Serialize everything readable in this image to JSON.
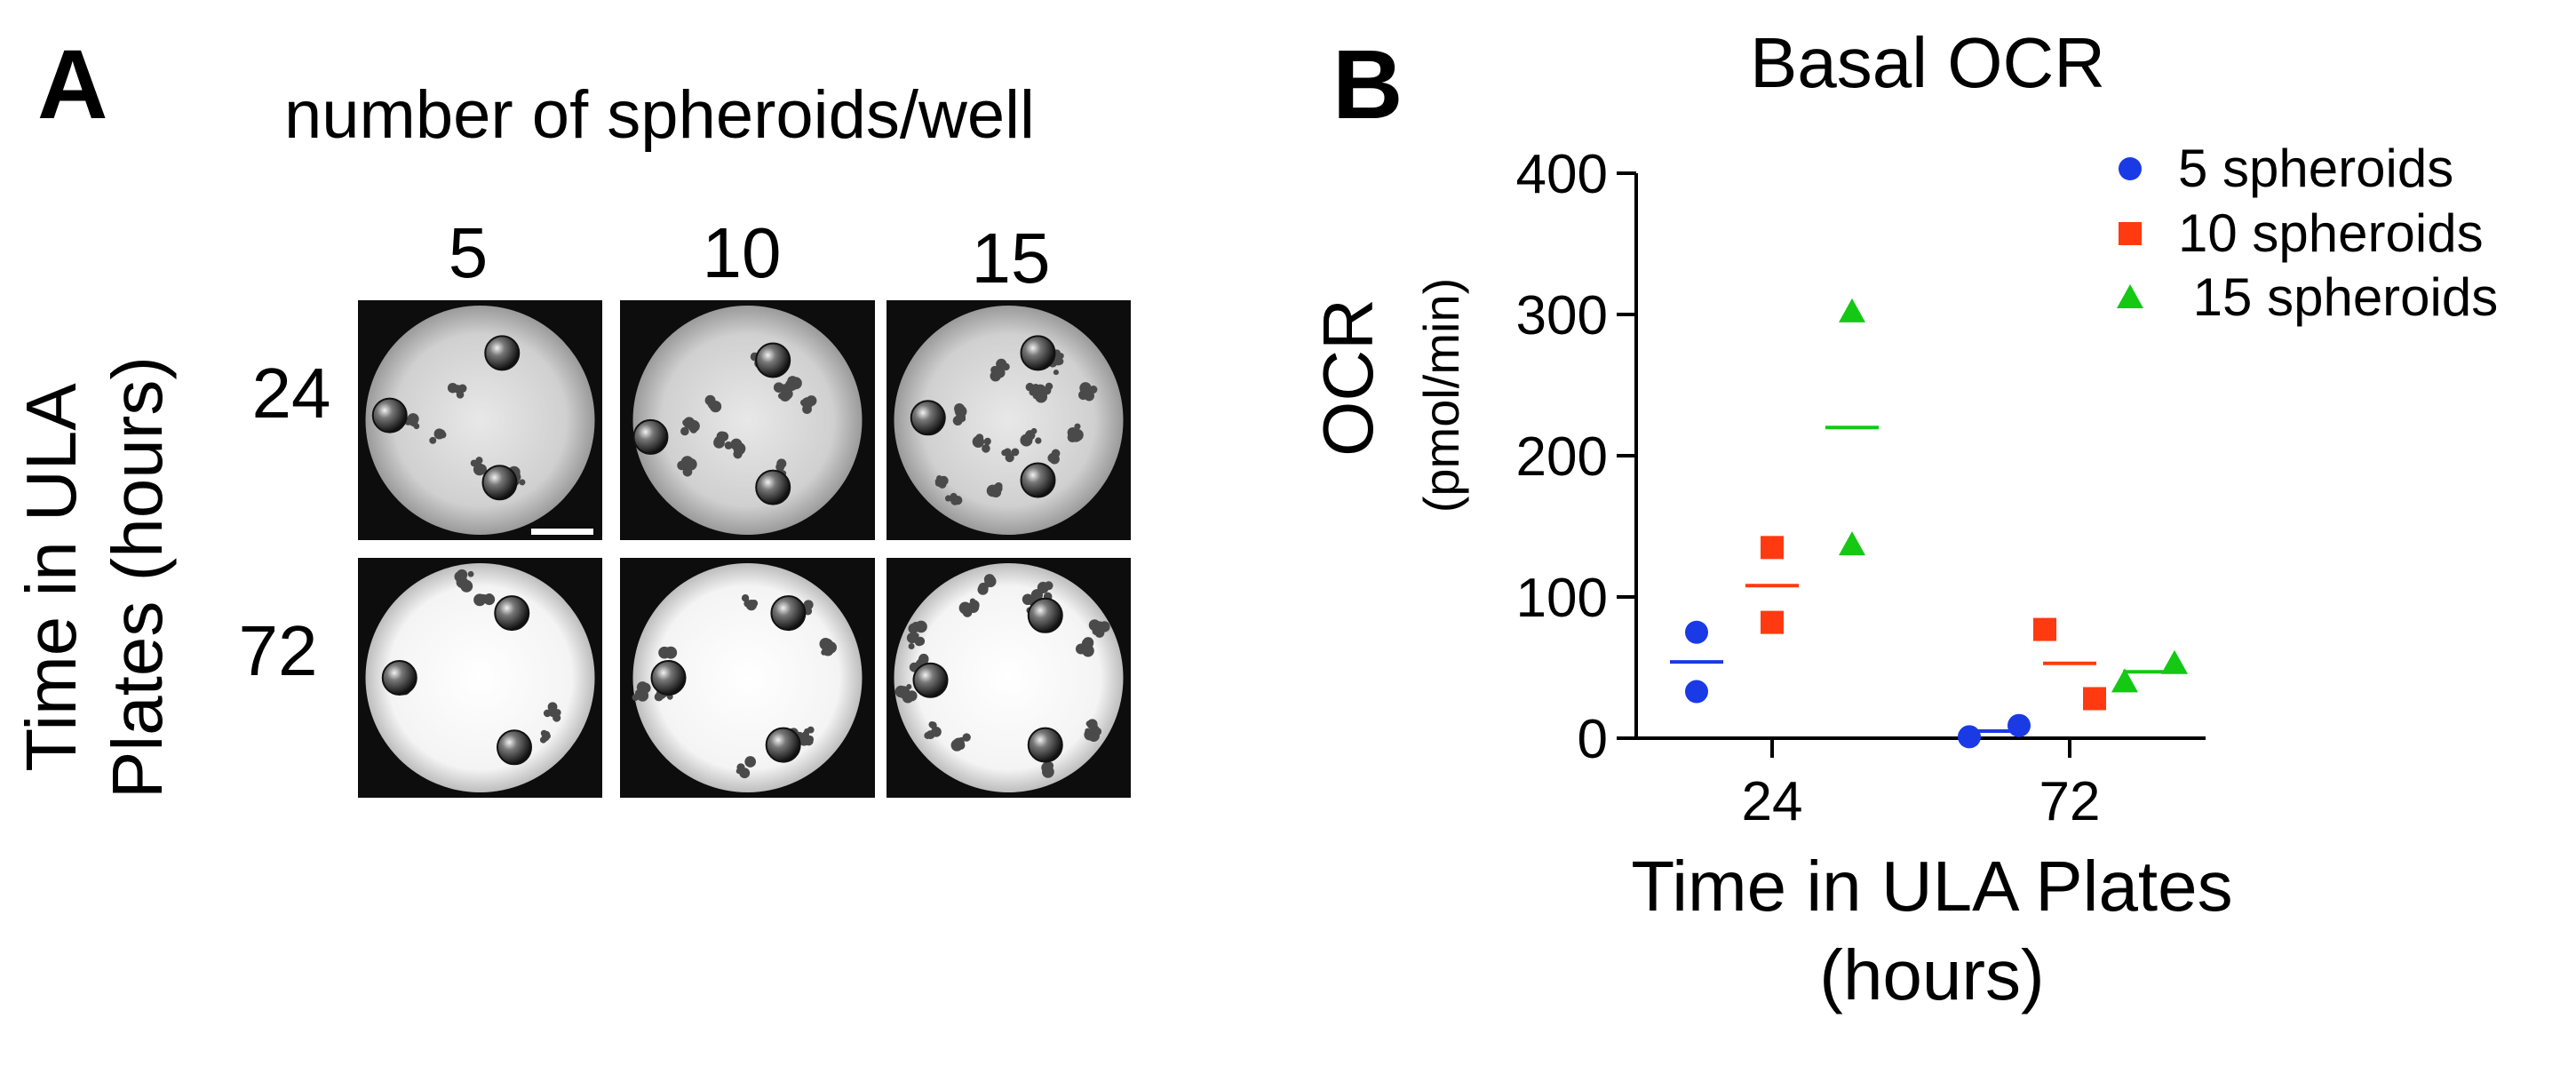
{
  "panel_a": {
    "label": "A",
    "column_header": "number of spheroids/well",
    "columns": [
      "5",
      "10",
      "15"
    ],
    "row_axis_label_lines": [
      "Time in ULA",
      "Plates (hours)"
    ],
    "rows": [
      "24",
      "72"
    ]
  },
  "panel_b": {
    "label": "B"
  },
  "colors": {
    "5 spheroids": "#1a3ae6",
    "10 spheroids": "#ff3a10",
    "15 spheroids": "#14c814"
  },
  "chart_data": {
    "type": "scatter",
    "title": "Basal OCR",
    "xlabel_lines": [
      "Time in ULA Plates",
      "(hours)"
    ],
    "ylabel": "OCR",
    "ylabel_sub": "(pmol/min)",
    "categories": [
      "24",
      "72"
    ],
    "ylim": [
      0,
      400
    ],
    "yticks": [
      0,
      100,
      200,
      300,
      400
    ],
    "grid": false,
    "legend_position": "top-right",
    "series": [
      {
        "name": "5 spheroids",
        "marker": "circle",
        "color": "#1a3ae6",
        "points": [
          {
            "x": "24",
            "values": [
              75,
              33
            ],
            "mean": 54
          },
          {
            "x": "72",
            "values": [
              1,
              9
            ],
            "mean": 5
          }
        ]
      },
      {
        "name": "10 spheroids",
        "marker": "square",
        "color": "#ff3a10",
        "points": [
          {
            "x": "24",
            "values": [
              135,
              82
            ],
            "mean": 108
          },
          {
            "x": "72",
            "values": [
              77,
              28
            ],
            "mean": 53
          }
        ]
      },
      {
        "name": " 15 spheroids",
        "marker": "triangle",
        "color": "#14c814",
        "points": [
          {
            "x": "24",
            "values": [
              302,
              137
            ],
            "mean": 220
          },
          {
            "x": "72",
            "values": [
              40,
              53
            ],
            "mean": 47
          }
        ]
      }
    ]
  }
}
